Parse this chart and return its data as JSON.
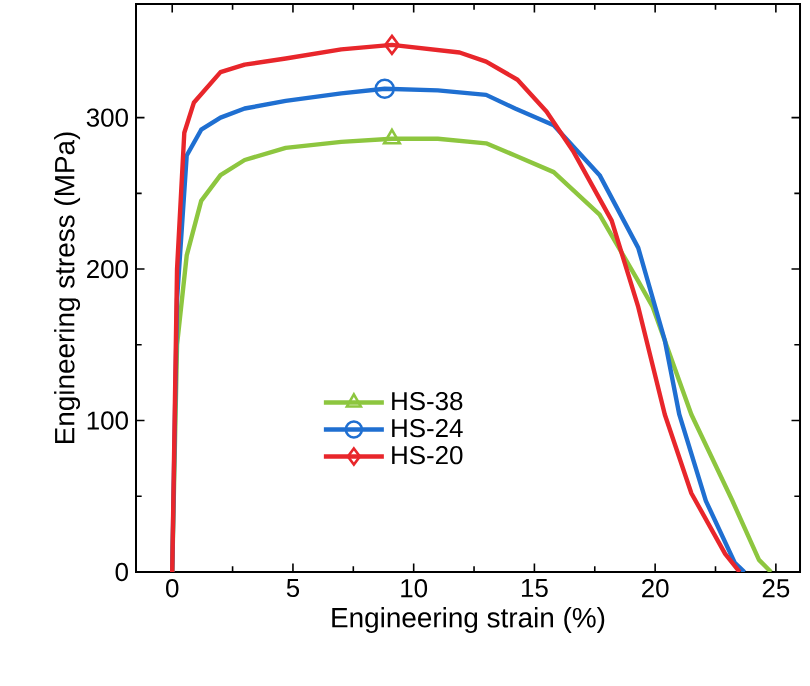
{
  "chart_data": {
    "type": "line",
    "xlabel": "Engineering strain (%)",
    "ylabel": "Engineering stress (MPa)",
    "xlim": [
      -1.5,
      26
    ],
    "xticks": [
      0,
      5,
      10,
      15,
      20,
      25
    ],
    "ylim": [
      0,
      375
    ],
    "yticks": [
      0,
      100,
      200,
      300
    ],
    "legend": "bottom left",
    "grid": false,
    "series": [
      {
        "name": "HS-38",
        "color": "#8dc63f",
        "x": [
          0,
          0.2,
          0.6,
          1.2,
          2.0,
          3.0,
          4.7,
          7.0,
          9.1,
          11.0,
          13.0,
          14.2,
          15.8,
          17.7,
          19.3,
          19.9,
          21.5,
          23.2,
          24.3,
          24.8
        ],
        "values": [
          0,
          150,
          209,
          245,
          262,
          272,
          280,
          284,
          286,
          286,
          283,
          275,
          264,
          236,
          192,
          175,
          104,
          47,
          8,
          0
        ]
      },
      {
        "name": "HS-24",
        "color": "#1f6fd1",
        "x": [
          0,
          0.2,
          0.6,
          1.2,
          2.0,
          3.0,
          4.7,
          7.0,
          8.8,
          11.0,
          13.0,
          14.2,
          15.8,
          17.7,
          19.3,
          20.4,
          21.0,
          22.1,
          23.3,
          23.7
        ],
        "values": [
          0,
          180,
          275,
          292,
          300,
          306,
          311,
          316,
          319,
          318,
          315,
          306,
          295,
          262,
          214,
          153,
          104,
          47,
          6,
          0
        ]
      },
      {
        "name": "HS-20",
        "color": "#e8262b",
        "x": [
          0,
          0.2,
          0.5,
          0.9,
          2.0,
          3.0,
          4.7,
          7.0,
          9.1,
          11.9,
          13.0,
          14.3,
          15.5,
          16.6,
          18.2,
          19.3,
          20.4,
          21.5,
          22.9,
          23.5
        ],
        "values": [
          0,
          200,
          290,
          310,
          330,
          335,
          339,
          345,
          348,
          343,
          337,
          325,
          304,
          278,
          232,
          175,
          104,
          52,
          12,
          0
        ]
      },
      {
        "type": "scatter",
        "marker": "triangle",
        "color": "#8dc63f",
        "x": [
          9.1
        ],
        "values": [
          286
        ]
      },
      {
        "type": "scatter",
        "marker": "circle",
        "color": "#1f6fd1",
        "x": [
          8.8
        ],
        "values": [
          319
        ]
      },
      {
        "type": "scatter",
        "marker": "diamond",
        "color": "#e8262b",
        "x": [
          9.1
        ],
        "values": [
          348
        ]
      }
    ]
  }
}
